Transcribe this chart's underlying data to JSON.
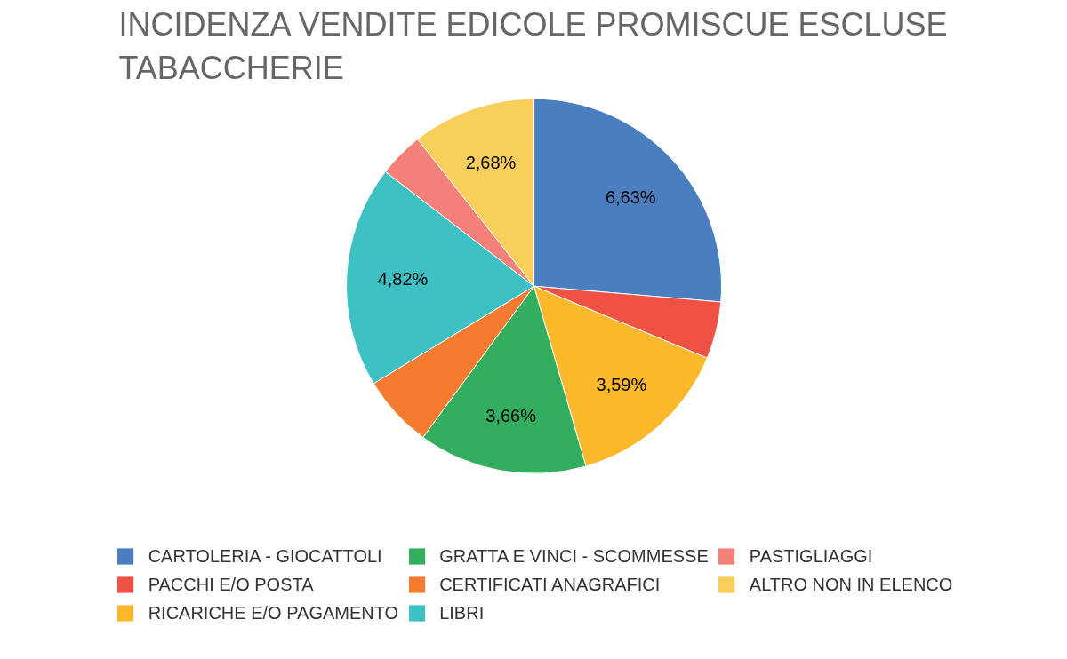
{
  "chart_data": {
    "type": "pie",
    "title": "INCIDENZA VENDITE EDICOLE PROMISCUE ESCLUSE TABACCHERIE",
    "categories": [
      "CARTOLERIA - GIOCATTOLI",
      "PACCHI E/O POSTA",
      "RICARICHE E/O PAGAMENTO",
      "GRATTA E VINCI - SCOMMESSE",
      "CERTIFICATI ANAGRAFICI",
      "LIBRI",
      "PASTIGLIAGGI",
      "ALTRO NON IN ELENCO"
    ],
    "values": [
      6.63,
      1.24,
      3.59,
      3.66,
      1.57,
      4.82,
      0.98,
      2.68
    ],
    "value_labels": [
      "6,63%",
      null,
      "3,59%",
      "3,66%",
      null,
      "4,82%",
      null,
      "2,68%"
    ],
    "colors": [
      "#4a7ebf",
      "#ef5144",
      "#fbb82b",
      "#33ae5e",
      "#f47b2f",
      "#3ec1c4",
      "#f38079",
      "#f9cf5c"
    ],
    "legend": "bottom"
  }
}
